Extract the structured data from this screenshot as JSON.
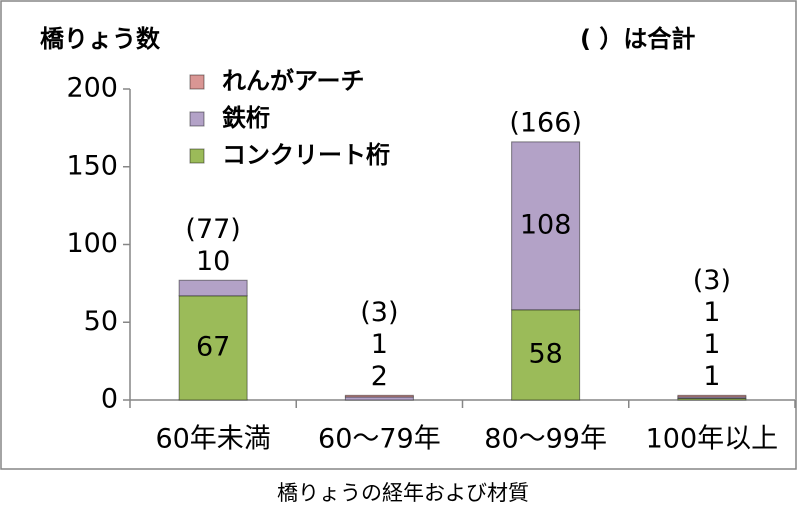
{
  "chart_data": {
    "type": "stacked_bar",
    "y_label": "橋りょう数",
    "annotation": "( ）は合計",
    "x_label": "橋りょうの経年および材質",
    "categories": [
      "60年未満",
      "60～79年",
      "80～99年",
      "100年以上"
    ],
    "series": [
      {
        "name": "コンクリート桁",
        "color": "#9bbb59",
        "values": [
          67,
          0,
          58,
          1
        ]
      },
      {
        "name": "鉄桁",
        "color": "#b3a2c7",
        "values": [
          10,
          2,
          108,
          1
        ]
      },
      {
        "name": "れんがアーチ",
        "color": "#d99694",
        "values": [
          0,
          1,
          0,
          1
        ]
      }
    ],
    "totals": {
      "values": [
        77,
        3,
        166,
        3
      ],
      "value_labels": [
        "(77)",
        "(3)",
        "(166)",
        "(3)"
      ]
    },
    "ylim": [
      0,
      200
    ],
    "yticks": [
      0,
      50,
      100,
      150,
      200
    ],
    "legend": "top-left"
  }
}
